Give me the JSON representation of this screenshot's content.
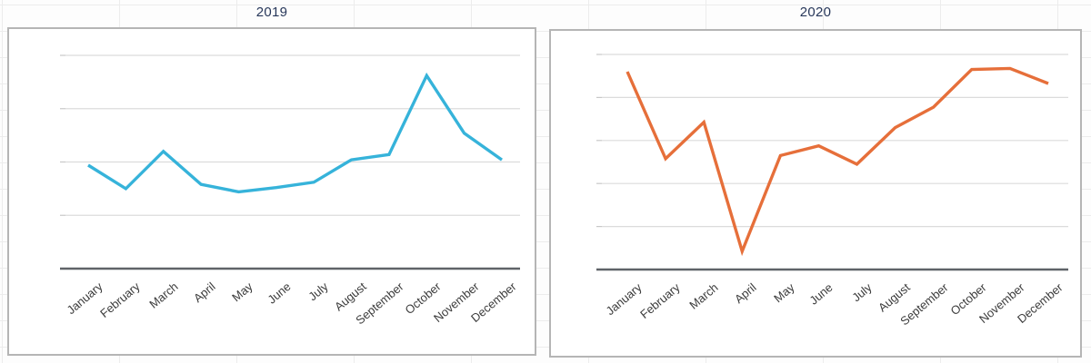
{
  "colors": {
    "title_text": "#27375a",
    "axis_label_text": "#3c3c3c",
    "gridline": "#dcdcdc",
    "axis_tick": "#c8c8c8",
    "x_axis_line": "#5f6368",
    "panel_border": "#b5b5b5",
    "series_2019": "#36b3da",
    "series_2020": "#e66f3a"
  },
  "chart_data": [
    {
      "type": "line",
      "title": "2019",
      "categories": [
        "January",
        "February",
        "March",
        "April",
        "May",
        "June",
        "July",
        "August",
        "September",
        "October",
        "November",
        "December"
      ],
      "values": [
        48.5,
        37.5,
        55,
        39.5,
        36,
        38,
        40.5,
        51,
        53.5,
        90.5,
        63.5,
        51
      ],
      "line_color": "#36b3da",
      "xlabel": "",
      "ylabel": "",
      "ylim": [
        0,
        100
      ],
      "gridline_step": 25,
      "grid": "horizontal",
      "legend_position": "none",
      "y_tick_labels_visible": false,
      "x_label_rotation_deg": -40
    },
    {
      "type": "line",
      "title": "2020",
      "categories": [
        "January",
        "February",
        "March",
        "April",
        "May",
        "June",
        "July",
        "August",
        "September",
        "October",
        "November",
        "December"
      ],
      "values": [
        92,
        51.5,
        68.5,
        8.5,
        53,
        57.5,
        49,
        66,
        75.5,
        93,
        93.5,
        86.5
      ],
      "line_color": "#e66f3a",
      "xlabel": "",
      "ylabel": "",
      "ylim": [
        0,
        100
      ],
      "gridline_step": 20,
      "grid": "horizontal",
      "legend_position": "none",
      "y_tick_labels_visible": false,
      "x_label_rotation_deg": -40
    }
  ]
}
